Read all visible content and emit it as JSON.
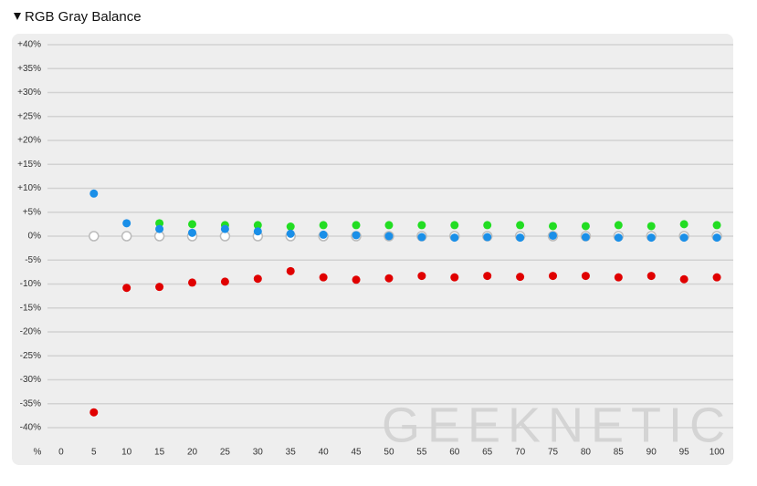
{
  "chart_data": {
    "type": "scatter",
    "title": "RGB Gray Balance",
    "xlabel": "%",
    "watermark": "GEEKNETIC",
    "x": [
      5,
      10,
      15,
      20,
      25,
      30,
      35,
      40,
      45,
      50,
      55,
      60,
      65,
      70,
      75,
      80,
      85,
      90,
      95,
      100
    ],
    "xlim": [
      -7.5,
      102.5
    ],
    "xticks": [
      0,
      5,
      10,
      15,
      20,
      25,
      30,
      35,
      40,
      45,
      50,
      55,
      60,
      65,
      70,
      75,
      80,
      85,
      90,
      95,
      100
    ],
    "ylim": [
      -40,
      40
    ],
    "yticks": [
      {
        "value": 40,
        "label": "+40%"
      },
      {
        "value": 35,
        "label": "+35%"
      },
      {
        "value": 30,
        "label": "+30%"
      },
      {
        "value": 25,
        "label": "+25%"
      },
      {
        "value": 20,
        "label": "+20%"
      },
      {
        "value": 15,
        "label": "+15%"
      },
      {
        "value": 10,
        "label": "+10%"
      },
      {
        "value": 5,
        "label": "+5%"
      },
      {
        "value": 0,
        "label": "0%"
      },
      {
        "value": -5,
        "label": "-5%"
      },
      {
        "value": -10,
        "label": "-10%"
      },
      {
        "value": -15,
        "label": "-15%"
      },
      {
        "value": -20,
        "label": "-20%"
      },
      {
        "value": -25,
        "label": "-25%"
      },
      {
        "value": -30,
        "label": "-30%"
      },
      {
        "value": -35,
        "label": "-35%"
      },
      {
        "value": -40,
        "label": "-40%"
      }
    ],
    "grid": true,
    "series": [
      {
        "color": "#ffffff",
        "values": [
          0,
          0,
          0,
          0,
          0,
          0,
          0,
          0,
          0,
          0,
          0,
          0,
          0,
          0,
          0,
          0,
          0,
          0,
          0,
          0
        ]
      },
      {
        "color": "#22dd22",
        "values": [
          null,
          null,
          2.7,
          2.5,
          2.3,
          2.3,
          2.0,
          2.3,
          2.3,
          2.3,
          2.3,
          2.3,
          2.3,
          2.3,
          2.1,
          2.1,
          2.3,
          2.1,
          2.5,
          2.3
        ]
      },
      {
        "color": "#e00000",
        "values": [
          -36.8,
          -10.8,
          -10.6,
          -9.7,
          -9.5,
          -8.9,
          -7.3,
          -8.6,
          -9.1,
          -8.8,
          -8.3,
          -8.6,
          -8.3,
          -8.5,
          -8.3,
          -8.3,
          -8.6,
          -8.3,
          -9.0,
          -8.6
        ]
      },
      {
        "color": "#1a8fe8",
        "values": [
          8.9,
          2.7,
          1.5,
          0.7,
          1.5,
          1.0,
          0.5,
          0.3,
          0.2,
          0,
          -0.2,
          -0.3,
          -0.2,
          -0.3,
          0.1,
          -0.2,
          -0.3,
          -0.3,
          -0.3,
          -0.3
        ]
      }
    ]
  }
}
